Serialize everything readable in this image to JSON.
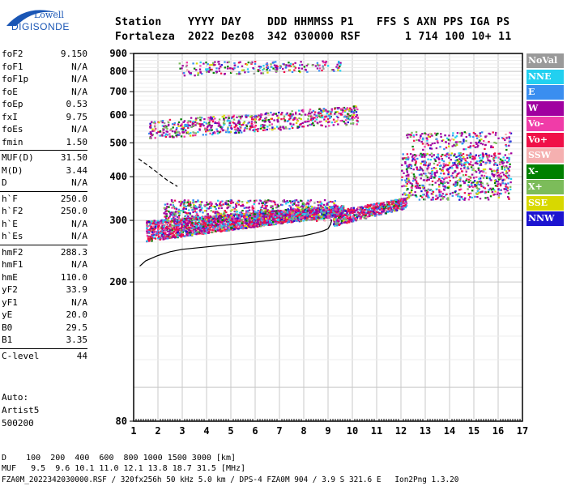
{
  "brand": {
    "line1": "Lowell",
    "line2": "DIGISONDE"
  },
  "header": {
    "row1": [
      "Station",
      "YYYY DAY",
      "DDD HHMMSS P1",
      "FFS S AXN PPS IGA PS"
    ],
    "row2": [
      "Fortaleza",
      "2022 Dez08",
      "342 030000 RSF",
      "1 714 100 10+ 11"
    ]
  },
  "params": [
    {
      "name": "foF2",
      "value": "9.150"
    },
    {
      "name": "foF1",
      "value": "N/A"
    },
    {
      "name": "foF1p",
      "value": "N/A"
    },
    {
      "name": "foE",
      "value": "N/A"
    },
    {
      "name": "foEp",
      "value": "0.53"
    },
    {
      "name": "fxI",
      "value": "9.75"
    },
    {
      "name": "foEs",
      "value": "N/A"
    },
    {
      "name": "fmin",
      "value": "1.50"
    },
    {
      "name": "MUF(D)",
      "value": "31.50"
    },
    {
      "name": "M(D)",
      "value": "3.44"
    },
    {
      "name": "D",
      "value": "N/A"
    },
    {
      "name": "h`F",
      "value": "250.0"
    },
    {
      "name": "h`F2",
      "value": "250.0"
    },
    {
      "name": "h`E",
      "value": "N/A"
    },
    {
      "name": "h`Es",
      "value": "N/A"
    },
    {
      "name": "hmF2",
      "value": "288.3"
    },
    {
      "name": "hmF1",
      "value": "N/A"
    },
    {
      "name": "hmE",
      "value": "110.0"
    },
    {
      "name": "yF2",
      "value": "33.9"
    },
    {
      "name": "yF1",
      "value": "N/A"
    },
    {
      "name": "yE",
      "value": "20.0"
    },
    {
      "name": "B0",
      "value": "29.5"
    },
    {
      "name": "B1",
      "value": "3.35"
    },
    {
      "name": "C-level",
      "value": "44"
    }
  ],
  "scaler": {
    "line1": "Auto:",
    "line2": "Artist5",
    "line3": "500200"
  },
  "legend": [
    {
      "label": "NoVal",
      "color": "#9a9a9a"
    },
    {
      "label": "NNE",
      "color": "#22d0f0"
    },
    {
      "label": "E",
      "color": "#3a8ef0"
    },
    {
      "label": "W",
      "color": "#a000a0"
    },
    {
      "label": "Vo-",
      "color": "#f03ca8"
    },
    {
      "label": "Vo+",
      "color": "#f01048"
    },
    {
      "label": "SSW",
      "color": "#f5b0b0"
    },
    {
      "label": "X-",
      "color": "#008000"
    },
    {
      "label": "X+",
      "color": "#7cbc5a"
    },
    {
      "label": "SSE",
      "color": "#d8d800"
    },
    {
      "label": "NNW",
      "color": "#1c14d0"
    }
  ],
  "footer": {
    "d_row": "D    100  200  400  600  800 1000 1500 3000 [km]",
    "muf_row": "MUF   9.5  9.6 10.1 11.0 12.1 13.8 18.7 31.5 [MHz]",
    "file_row": "FZA0M_2022342030000.RSF / 320fx256h 50 kHz 5.0 km / DPS-4 FZA0M 904 / 3.9 S 321.6 E   Ion2Png 1.3.20"
  },
  "chart_data": {
    "type": "scatter",
    "title": "",
    "xlabel": "",
    "ylabel": "",
    "xlim": [
      1,
      17
    ],
    "ylim": [
      80,
      900
    ],
    "x_ticks": [
      "1",
      "2",
      "3",
      "4",
      "5",
      "6",
      "7",
      "8",
      "9",
      "10",
      "11",
      "12",
      "13",
      "14",
      "15",
      "16",
      "17"
    ],
    "y_ticks": [
      "80",
      "200",
      "300",
      "400",
      "500",
      "600",
      "700",
      "800",
      "900"
    ],
    "grid": true,
    "y_scale": "log",
    "legend_placement": "right",
    "series": [
      {
        "name": "trace",
        "color": "#000000",
        "x": [
          1.25,
          1.5,
          2.0,
          2.5,
          3.0,
          4.0,
          5.0,
          6.0,
          7.0,
          7.5,
          8.0,
          8.5,
          8.8,
          9.0,
          9.05,
          9.1,
          9.15
        ],
        "y": [
          222,
          230,
          238,
          244,
          248,
          252,
          256,
          260,
          265,
          268,
          271,
          276,
          280,
          284,
          288,
          292,
          300
        ]
      },
      {
        "name": "dashed",
        "color": "#000000",
        "x": [
          1.2,
          1.6,
          2.0,
          2.4,
          2.8
        ],
        "y": [
          450,
          430,
          410,
          390,
          375
        ]
      }
    ]
  }
}
